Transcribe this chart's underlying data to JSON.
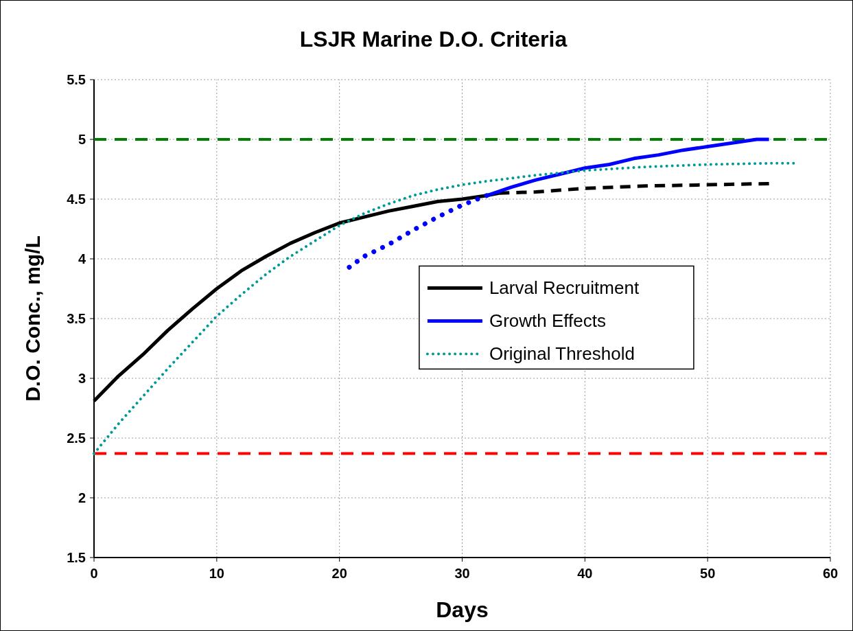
{
  "chart_data": {
    "type": "line",
    "title": "LSJR Marine D.O. Criteria",
    "xlabel": "Days",
    "ylabel": "D.O. Conc., mg/L",
    "xlim": [
      0,
      60
    ],
    "xticks": [
      0,
      10,
      20,
      30,
      40,
      50,
      60
    ],
    "ylim": [
      1.5,
      5.5
    ],
    "yticks": [
      1.5,
      2,
      2.5,
      3,
      3.5,
      4,
      4.5,
      5,
      5.5
    ],
    "grid": true,
    "legend": "right",
    "series": [
      {
        "name": "Larval Recruitment",
        "color": "#000000",
        "line_style": "solid",
        "x": [
          0,
          2,
          4,
          6,
          8,
          10,
          12,
          14,
          16,
          18,
          20,
          22,
          24,
          26,
          28,
          30,
          32,
          33
        ],
        "values": [
          2.81,
          3.02,
          3.2,
          3.4,
          3.58,
          3.75,
          3.9,
          4.02,
          4.13,
          4.22,
          4.3,
          4.35,
          4.4,
          4.44,
          4.48,
          4.5,
          4.53,
          4.55
        ]
      },
      {
        "color": "#000000",
        "line_style": "dashed",
        "x": [
          33,
          36,
          40,
          45,
          50,
          55
        ],
        "values": [
          4.55,
          4.56,
          4.59,
          4.61,
          4.62,
          4.63
        ]
      },
      {
        "name": "Growth Effects",
        "color": "#0000ff",
        "line_style": "solid",
        "x": [
          32,
          34,
          36,
          38,
          40,
          42,
          44,
          46,
          48,
          50,
          52,
          54,
          55
        ],
        "values": [
          4.53,
          4.6,
          4.66,
          4.71,
          4.76,
          4.79,
          4.84,
          4.87,
          4.91,
          4.94,
          4.97,
          5.0,
          5.0
        ]
      },
      {
        "color": "#0000ff",
        "line_style": "dotted",
        "x": [
          20.8,
          22,
          24,
          26,
          28,
          30,
          32
        ],
        "values": [
          3.93,
          4.02,
          4.12,
          4.24,
          4.35,
          4.45,
          4.53
        ]
      },
      {
        "name": "Original Threshold",
        "color": "#009999",
        "line_style": "dotted",
        "x": [
          0,
          2,
          4,
          6,
          8,
          10,
          12,
          14,
          16,
          18,
          20,
          22,
          24,
          26,
          28,
          30,
          32,
          36,
          40,
          45,
          50,
          55,
          57
        ],
        "values": [
          2.37,
          2.62,
          2.85,
          3.08,
          3.3,
          3.52,
          3.7,
          3.87,
          4.02,
          4.15,
          4.28,
          4.38,
          4.46,
          4.53,
          4.58,
          4.62,
          4.65,
          4.7,
          4.74,
          4.77,
          4.79,
          4.8,
          4.8
        ]
      }
    ],
    "ref_lines": [
      {
        "axis": "y",
        "value": 5,
        "color": "#008000",
        "line_style": "dashed"
      },
      {
        "axis": "y",
        "value": 2.37,
        "color": "#ff0000",
        "line_style": "dashed"
      }
    ]
  }
}
